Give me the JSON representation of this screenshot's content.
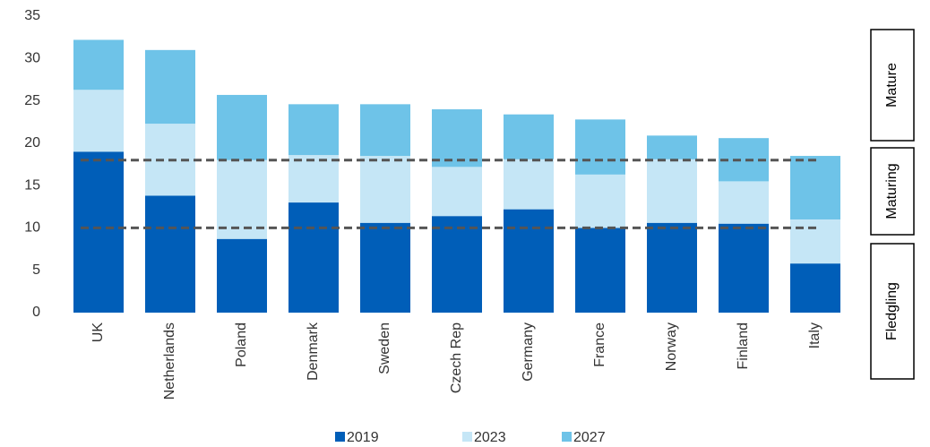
{
  "chart_data": {
    "type": "stacked_bar",
    "categories": [
      "UK",
      "Netherlands",
      "Poland",
      "Denmark",
      "Sweden",
      "Czech Rep",
      "Germany",
      "France",
      "Norway",
      "Finland",
      "Italy"
    ],
    "series": [
      {
        "name": "2019",
        "color": "#005eb8",
        "values": [
          19.0,
          13.8,
          8.7,
          13.0,
          10.6,
          11.4,
          12.2,
          10.0,
          10.6,
          10.5,
          5.8
        ]
      },
      {
        "name": "2023",
        "color": "#c5e6f6",
        "values": [
          7.3,
          8.5,
          9.3,
          5.6,
          7.9,
          5.8,
          5.9,
          6.3,
          7.5,
          5.0,
          5.2
        ]
      },
      {
        "name": "2027",
        "color": "#6ec3e8",
        "values": [
          5.9,
          8.7,
          7.7,
          6.0,
          6.1,
          6.8,
          5.3,
          6.5,
          2.8,
          5.1,
          7.5
        ]
      }
    ],
    "ylim": [
      0,
      35
    ],
    "yticks": [
      0,
      5,
      10,
      15,
      20,
      25,
      30,
      35
    ],
    "grid": false,
    "reference_lines": [
      18,
      10
    ],
    "stages": [
      "Mature",
      "Maturing",
      "Fledgling"
    ],
    "legend": "bottom"
  }
}
